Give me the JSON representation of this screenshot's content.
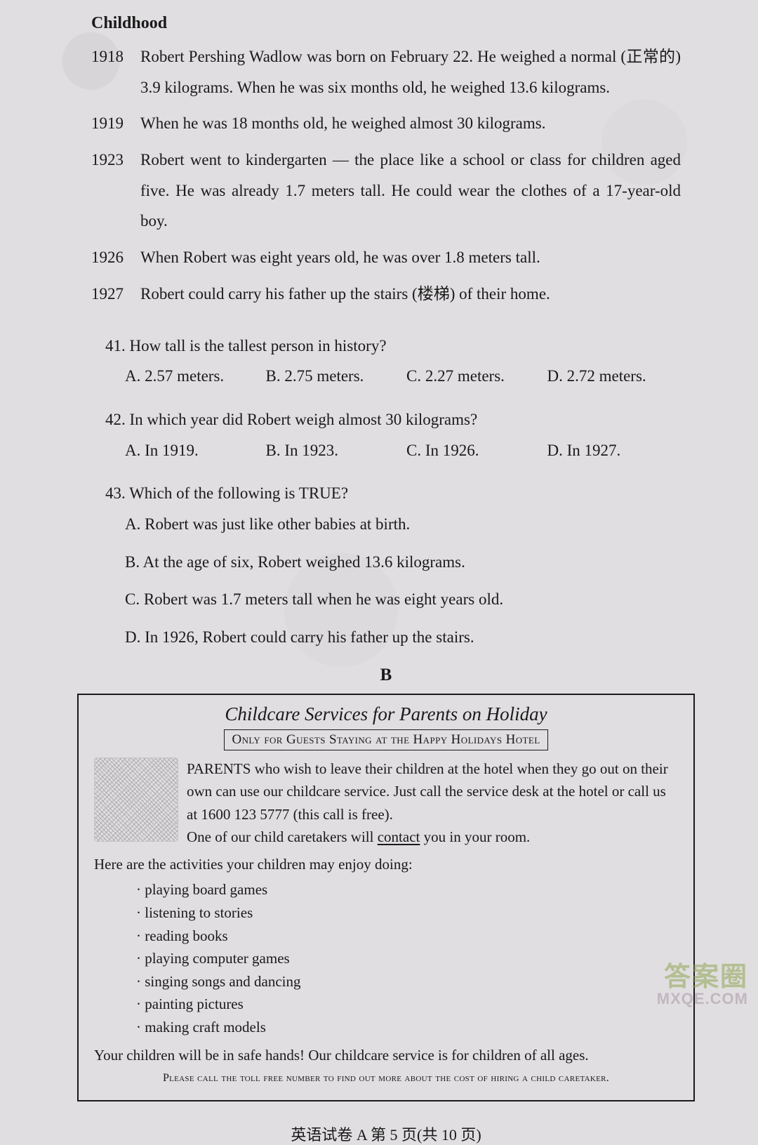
{
  "section_heading": "Childhood",
  "timeline": [
    {
      "year": "1918",
      "text": "Robert Pershing Wadlow was born on February 22. He weighed a normal (正常的) 3.9 kilograms. When he was six months old, he weighed 13.6 kilograms."
    },
    {
      "year": "1919",
      "text": "When he was 18 months old, he weighed almost 30 kilograms."
    },
    {
      "year": "1923",
      "text": "Robert went to kindergarten — the place like a school or class for children aged five. He was already 1.7 meters tall. He could wear the clothes of a 17-year-old boy."
    },
    {
      "year": "1926",
      "text": "When Robert was eight years old, he was over 1.8 meters tall."
    },
    {
      "year": "1927",
      "text": "Robert could carry his father up the stairs (楼梯) of their home."
    }
  ],
  "q41": {
    "stem": "41. How tall is the tallest person in history?",
    "a": "A. 2.57 meters.",
    "b": "B. 2.75 meters.",
    "c": "C. 2.27 meters.",
    "d": "D. 2.72 meters."
  },
  "q42": {
    "stem": "42. In which year did Robert weigh almost 30 kilograms?",
    "a": "A. In 1919.",
    "b": "B. In 1923.",
    "c": "C. In 1926.",
    "d": "D. In 1927."
  },
  "q43": {
    "stem": "43. Which of the following is TRUE?",
    "a": "A. Robert was just like other babies at birth.",
    "b": "B. At the age of six, Robert weighed 13.6 kilograms.",
    "c": "C. Robert was 1.7 meters tall when he was eight years old.",
    "d": "D. In 1926, Robert could carry his father up the stairs."
  },
  "passage_b_label": "B",
  "card": {
    "title": "Childcare Services for Parents on Holiday",
    "subtitle": "Only for Guests Staying at the Happy Holidays Hotel",
    "intro_p1": "PARENTS who wish to leave their children at the hotel when they go out on their own can use our childcare service. Just call the service desk at the hotel or call us at 1600 123 5777 (this call is free).",
    "intro_p2a": "One of our child caretakers will ",
    "intro_p2_contact": "contact",
    "intro_p2b": " you in your room.",
    "activities_head": "Here are the activities your children may enjoy doing:",
    "activities": [
      "playing board games",
      "listening to stories",
      "reading books",
      "playing computer games",
      "singing songs and dancing",
      "painting pictures",
      "making craft models"
    ],
    "footer": "Your children will be in safe hands! Our childcare service is for children of all ages.",
    "note": "Please call the toll free number to find out more about the cost of hiring a child caretaker."
  },
  "page_num": "英语试卷 A  第 5 页(共 10 页)",
  "watermark": {
    "line1": "答案圈",
    "line2": "MXQE.COM"
  }
}
